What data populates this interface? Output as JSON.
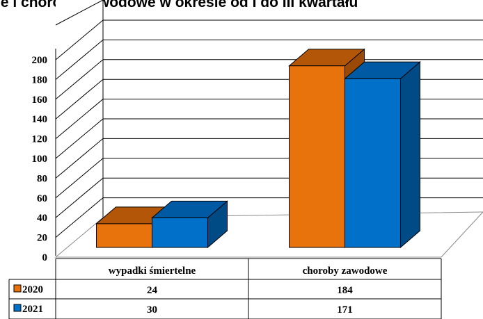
{
  "chart_data": {
    "type": "bar",
    "title": "ne i choroby zawodowe w okresie od I do III kwartału",
    "categories": [
      "wypadki śmiertelne",
      "choroby zawodowe"
    ],
    "series": [
      {
        "name": "2020",
        "values": [
          24,
          184
        ],
        "color": "#E8720C",
        "top_color": "#B35607",
        "side_color": "#9A4A06"
      },
      {
        "name": "2021",
        "values": [
          30,
          171
        ],
        "color": "#0070C8",
        "top_color": "#0059A3",
        "side_color": "#004A86"
      }
    ],
    "ylim": [
      0,
      200
    ],
    "yticks": [
      "0",
      "20",
      "40",
      "60",
      "80",
      "100",
      "120",
      "140",
      "160",
      "180",
      "200"
    ],
    "grid": true,
    "legend": "data-table",
    "style": "3d-clustered-column"
  }
}
